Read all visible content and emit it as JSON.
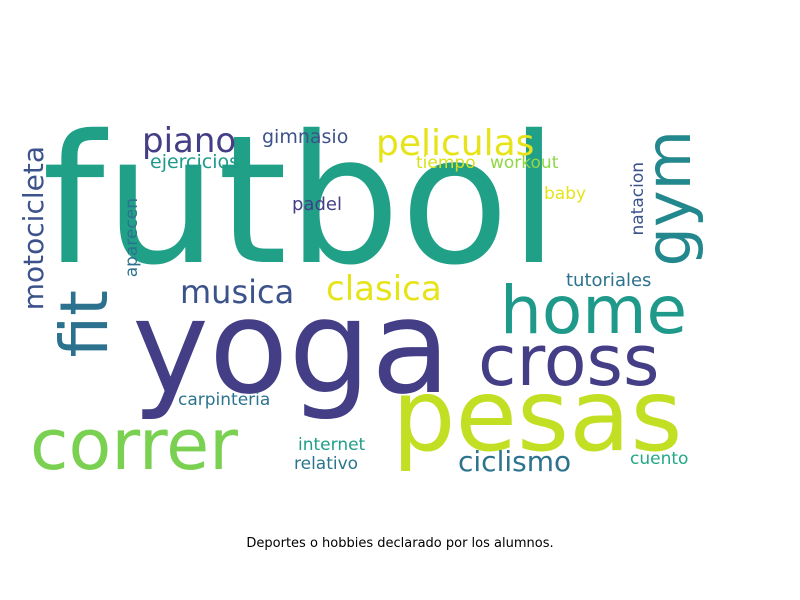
{
  "caption": "Deportes o hobbies declarado por los alumnos.",
  "palette": {
    "teal": "#21a088",
    "indigo": "#433e85",
    "lime": "#c2df23",
    "green": "#7ad151",
    "blue_teal": "#2c738e",
    "slate": "#3b528b",
    "yellow": "#e6e419",
    "mid_teal": "#1f9a8a",
    "light_green": "#6ece58",
    "cyan": "#23888e"
  },
  "words": [
    {
      "text": "futbol",
      "color": "#21a088"
    },
    {
      "text": "yoga",
      "color": "#433e85"
    },
    {
      "text": "pesas",
      "color": "#c2df23"
    },
    {
      "text": "home",
      "color": "#1f9a8a"
    },
    {
      "text": "cross",
      "color": "#433e85"
    },
    {
      "text": "correr",
      "color": "#7ad151"
    },
    {
      "text": "fit",
      "color": "#2c728e"
    },
    {
      "text": "gym",
      "color": "#23888e"
    },
    {
      "text": "peliculas",
      "color": "#e6e419"
    },
    {
      "text": "piano",
      "color": "#433e85"
    },
    {
      "text": "musica",
      "color": "#3b528b"
    },
    {
      "text": "clasica",
      "color": "#e6e419"
    },
    {
      "text": "motocicleta",
      "color": "#3b528b"
    },
    {
      "text": "ciclismo",
      "color": "#2c738e"
    },
    {
      "text": "gimnasio",
      "color": "#3b528b"
    },
    {
      "text": "ejercicios",
      "color": "#1f9a8a"
    },
    {
      "text": "tiempo",
      "color": "#d8e219"
    },
    {
      "text": "workout",
      "color": "#8fd744"
    },
    {
      "text": "baby",
      "color": "#e5e419"
    },
    {
      "text": "padel",
      "color": "#433e85"
    },
    {
      "text": "natacion",
      "color": "#3b528b"
    },
    {
      "text": "aparecen",
      "color": "#2c728e"
    },
    {
      "text": "tutoriales",
      "color": "#2c728e"
    },
    {
      "text": "carpinteria",
      "color": "#2c738e"
    },
    {
      "text": "internet",
      "color": "#1f9e89"
    },
    {
      "text": "relativo",
      "color": "#2c738e"
    },
    {
      "text": "cuento",
      "color": "#22a884"
    }
  ]
}
